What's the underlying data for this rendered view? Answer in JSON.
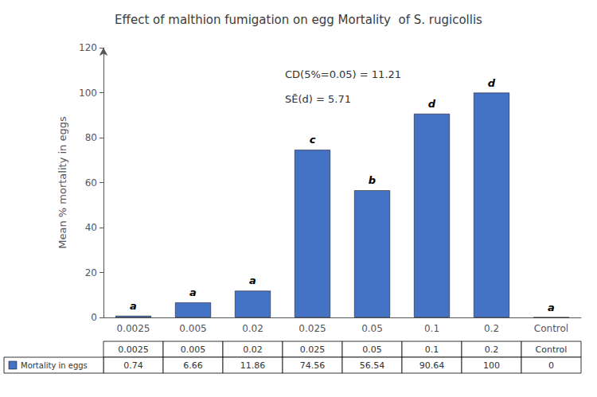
{
  "chart_data": {
    "type": "bar",
    "title": "Effect of malthion fumigation on egg Mortality  of S. rugicollis",
    "categories": [
      "0.0025",
      "0.005",
      "0.02",
      "0.025",
      "0.05",
      "0.1",
      "0.2",
      "Control"
    ],
    "values": [
      0.74,
      6.66,
      11.86,
      74.56,
      56.54,
      90.64,
      100,
      0
    ],
    "color": "#4472C4",
    "ylabel": "Mean % mortality in eggs",
    "ylim": [
      0,
      120
    ],
    "yticks": [
      0,
      20,
      40,
      60,
      80,
      100,
      120
    ],
    "sig_labels": [
      "a",
      "a",
      "a",
      "c",
      "b",
      "d",
      "d",
      "a"
    ],
    "annotations": [
      "CD(5%=0.05) = 11.21",
      "SĒ(d) = 5.71"
    ],
    "table_row_label": "Mortality in eggs",
    "grid": false
  }
}
